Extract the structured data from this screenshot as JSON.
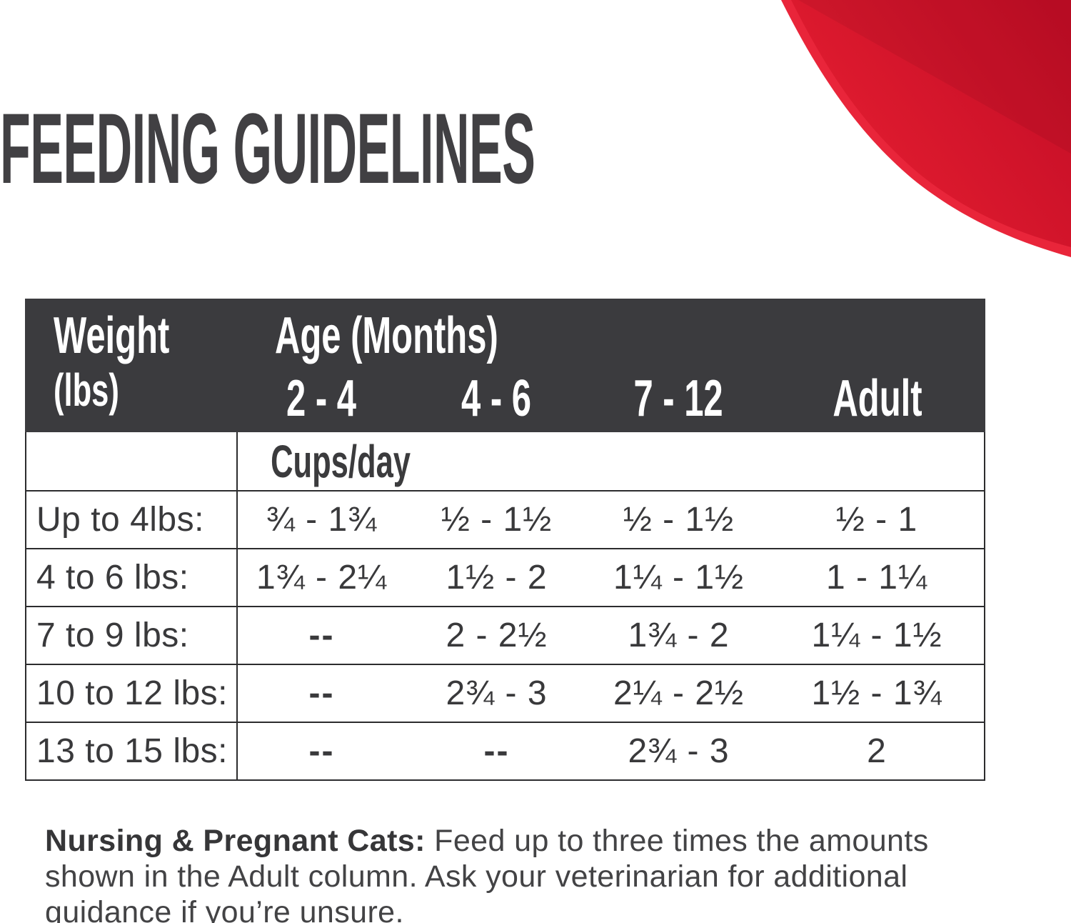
{
  "title": "FEEDING GUIDELINES",
  "table": {
    "weight_header": "Weight",
    "weight_unit": "(lbs)",
    "age_header": "Age (Months)",
    "age_columns": [
      "2 - 4",
      "4 - 6",
      "7 - 12",
      "Adult"
    ],
    "units_label": "Cups/day",
    "rows": [
      {
        "weight": "Up to 4lbs:",
        "values": [
          "¾ - 1¾",
          "½ - 1½",
          "½ - 1½",
          "½ - 1"
        ]
      },
      {
        "weight": "4 to 6 lbs:",
        "values": [
          "1¾ - 2¼",
          "1½ - 2",
          "1¼ - 1½",
          "1 - 1¼"
        ]
      },
      {
        "weight": "7 to 9 lbs:",
        "values": [
          "--",
          "2 - 2½",
          "1¾ - 2",
          "1¼ - 1½"
        ]
      },
      {
        "weight": "10 to 12 lbs:",
        "values": [
          "--",
          "2¾ - 3",
          "2¼ - 2½",
          "1½ - 1¾"
        ]
      },
      {
        "weight": "13 to 15 lbs:",
        "values": [
          "--",
          "--",
          "2¾ - 3",
          "2"
        ]
      }
    ]
  },
  "note": {
    "bold": "Nursing & Pregnant Cats:",
    "line1_rest": " Feed up to three times the amounts",
    "line2": "shown in the Adult column. Ask your veterinarian for additional",
    "line3": "guidance if you’re unsure."
  },
  "colors": {
    "accent_red": "#d6132b",
    "accent_red_light": "#e9253a",
    "accent_red_dark": "#c30d26",
    "header_bg": "#3b3b3e",
    "title_text": "#414043",
    "body_text": "#39393b",
    "border": "#2c2c2e"
  }
}
